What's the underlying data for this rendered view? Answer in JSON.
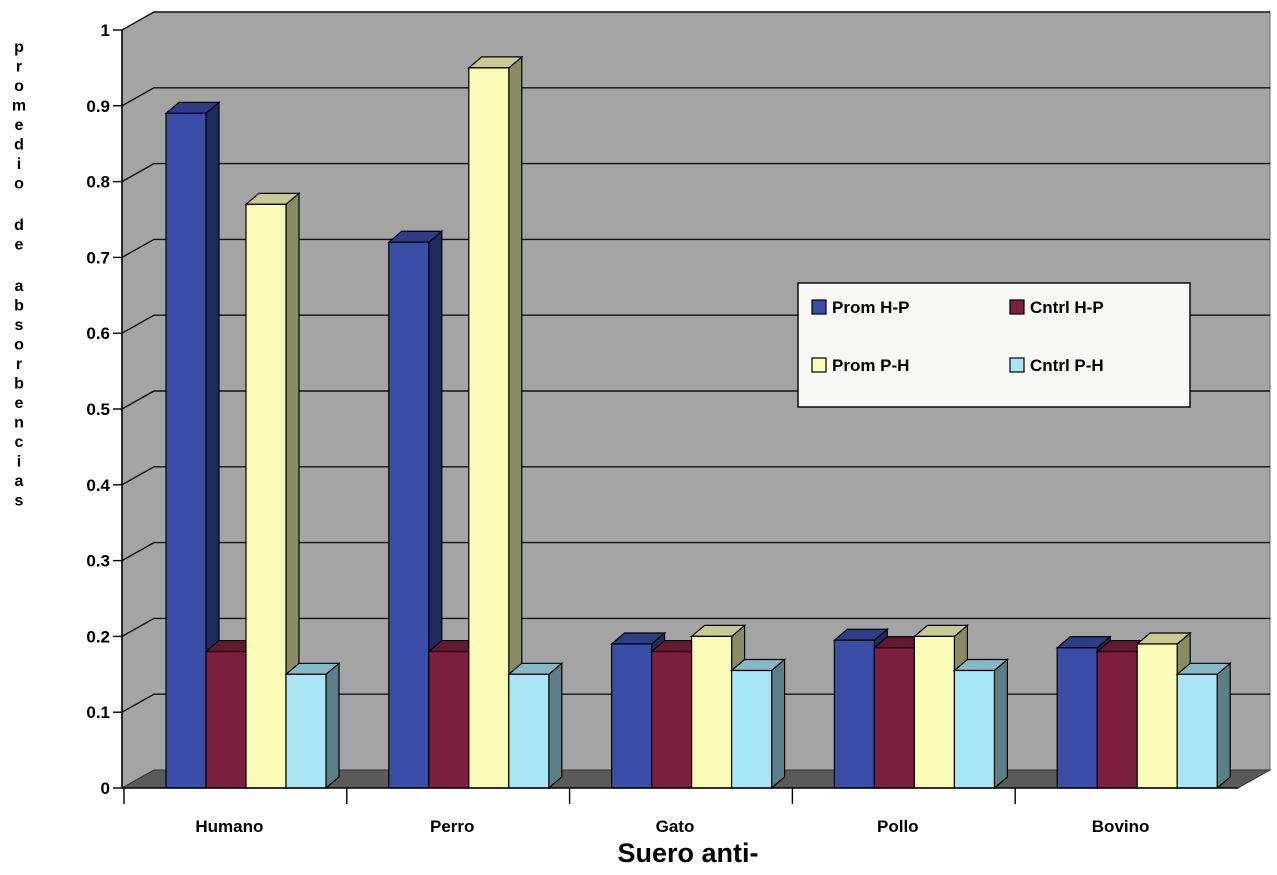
{
  "chart_data": {
    "type": "bar",
    "categories": [
      "Humano",
      "Perro",
      "Gato",
      "Pollo",
      "Bovino"
    ],
    "series": [
      {
        "name": "Prom H-P",
        "color": "#3a4ea8",
        "values": [
          0.89,
          0.72,
          0.19,
          0.195,
          0.185
        ]
      },
      {
        "name": "Cntrl H-P",
        "color": "#7d1f3f",
        "values": [
          0.18,
          0.18,
          0.18,
          0.185,
          0.18
        ]
      },
      {
        "name": "Prom P-H",
        "color": "#fbfbb8",
        "values": [
          0.77,
          0.95,
          0.2,
          0.2,
          0.19
        ]
      },
      {
        "name": "Cntrl P-H",
        "color": "#a8e6f6",
        "values": [
          0.15,
          0.15,
          0.155,
          0.155,
          0.15
        ]
      }
    ],
    "xlabel": "Suero anti-",
    "ylabel": "promedio de absorbencias",
    "ylim": [
      0,
      1
    ],
    "yticks": [
      0,
      0.1,
      0.2,
      0.3,
      0.4,
      0.5,
      0.6,
      0.7,
      0.8,
      0.9,
      1
    ],
    "ytick_labels": [
      "0",
      "0.1",
      "0.2",
      "0.3",
      "0.4",
      "0.5",
      "0.6",
      "0.7",
      "0.8",
      "0.9",
      "1"
    ],
    "grid": true,
    "legend_position": "center-right",
    "wall_color": "#a4a4a4",
    "floor_color": "#5a5a5a"
  }
}
